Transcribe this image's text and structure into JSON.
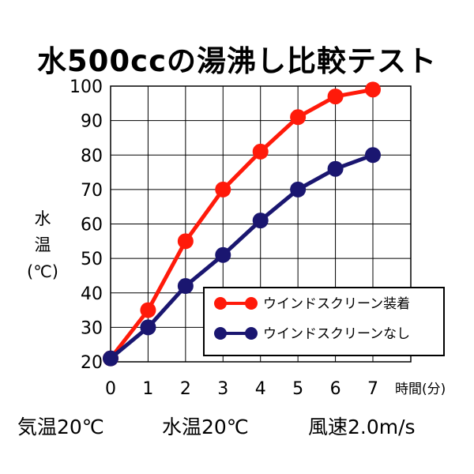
{
  "chart_data": {
    "type": "line",
    "title": "水500ccの湯沸し比較テスト",
    "ylabel": [
      "水",
      "温",
      "(℃)"
    ],
    "xlabel": "時間(分)",
    "x": [
      0,
      1,
      2,
      3,
      4,
      5,
      6,
      7
    ],
    "xlim": [
      0,
      7
    ],
    "ylim": [
      20,
      100
    ],
    "yticks": [
      20,
      30,
      40,
      50,
      60,
      70,
      80,
      90,
      100
    ],
    "grid": true,
    "legend_position": "bottom-right",
    "series": [
      {
        "name": "ウインドスクリーン装着",
        "color": "#ff1a0a",
        "values": [
          21,
          35,
          55,
          70,
          81,
          91,
          97,
          99
        ]
      },
      {
        "name": "ウインドスクリーンなし",
        "color": "#1a1670",
        "values": [
          21,
          30,
          42,
          51,
          61,
          70,
          76,
          80
        ]
      }
    ]
  },
  "footer": {
    "air_temp": "気温20℃",
    "water_temp": "水温20℃",
    "wind_speed": "風速2.0m/s"
  }
}
